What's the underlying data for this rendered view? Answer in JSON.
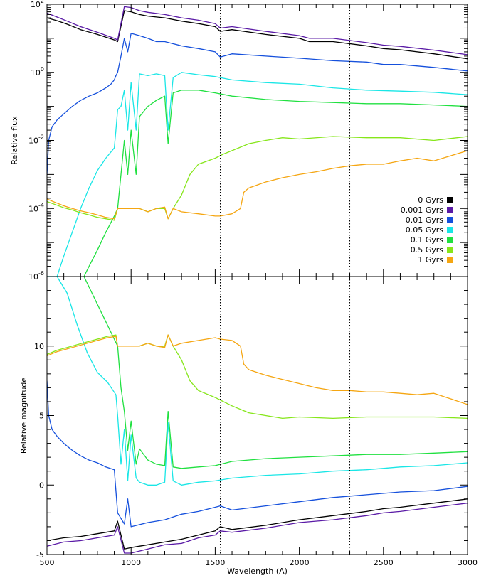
{
  "chart_data": [
    {
      "type": "line",
      "panel": "top",
      "title": "",
      "xlabel": "",
      "ylabel": "Relative flux",
      "yscale": "log",
      "xlim": [
        500,
        3000
      ],
      "ylim": [
        1e-06,
        100
      ],
      "y_tick_labels": [
        {
          "value": 100,
          "base": "10",
          "exp": "2"
        },
        {
          "value": 1,
          "base": "10",
          "exp": "0"
        },
        {
          "value": 0.01,
          "base": "10",
          "exp": "-2"
        },
        {
          "value": 0.0001,
          "base": "10",
          "exp": "-4"
        },
        {
          "value": 1e-06,
          "base": "10",
          "exp": "-6"
        }
      ],
      "reference_lines_x": [
        1530,
        2300
      ],
      "legend": {
        "placement": "right",
        "entries": [
          {
            "label": "0 Gyrs",
            "color": "#000000"
          },
          {
            "label": "0.001 Gyrs",
            "color": "#5a1aa6"
          },
          {
            "label": "0.01 Gyrs",
            "color": "#1550dc"
          },
          {
            "label": "0.05 Gyrs",
            "color": "#19e6e6"
          },
          {
            "label": "0.1 Gyrs",
            "color": "#20e040"
          },
          {
            "label": "0.5 Gyrs",
            "color": "#86e61a"
          },
          {
            "label": "1 Gyrs",
            "color": "#f5a612"
          }
        ]
      },
      "series": [
        {
          "name": "0 Gyrs",
          "color": "#000000",
          "x": [
            500,
            560,
            620,
            700,
            800,
            900,
            920,
            960,
            1000,
            1050,
            1100,
            1200,
            1300,
            1400,
            1500,
            1530,
            1600,
            1800,
            2000,
            2060,
            2200,
            2400,
            2500,
            2600,
            2800,
            3000
          ],
          "y": [
            40,
            33,
            26,
            18,
            13,
            9,
            8,
            65,
            60,
            50,
            45,
            40,
            32,
            27,
            22,
            16,
            18,
            13,
            10,
            8,
            8,
            6,
            5,
            4.6,
            3.5,
            2.5
          ]
        },
        {
          "name": "0.001 Gyrs",
          "color": "#5a1aa6",
          "x": [
            500,
            560,
            620,
            700,
            800,
            900,
            920,
            960,
            1000,
            1050,
            1100,
            1200,
            1300,
            1400,
            1500,
            1530,
            1600,
            1800,
            2000,
            2060,
            2200,
            2400,
            2500,
            2600,
            2800,
            3000
          ],
          "y": [
            55,
            42,
            32,
            22,
            15,
            10,
            9,
            85,
            80,
            65,
            58,
            50,
            40,
            34,
            27,
            20,
            22,
            16,
            12,
            10,
            10,
            7.5,
            6.3,
            5.8,
            4.5,
            3.3
          ]
        },
        {
          "name": "0.01 Gyrs",
          "color": "#1550dc",
          "x": [
            500,
            510,
            530,
            560,
            600,
            650,
            700,
            750,
            800,
            850,
            880,
            900,
            910,
            920,
            940,
            960,
            980,
            1000,
            1050,
            1100,
            1150,
            1200,
            1300,
            1400,
            1500,
            1530,
            1600,
            1800,
            2000,
            2200,
            2400,
            2500,
            2600,
            2800,
            3000
          ],
          "y": [
            0.001,
            0.01,
            0.025,
            0.04,
            0.06,
            0.1,
            0.15,
            0.2,
            0.25,
            0.35,
            0.45,
            0.6,
            0.8,
            1.0,
            3,
            10,
            4,
            14,
            12,
            10,
            8,
            8,
            6,
            5,
            4,
            2.8,
            3.5,
            3,
            2.6,
            2.2,
            2,
            1.7,
            1.7,
            1.4,
            1.1
          ]
        },
        {
          "name": "0.05 Gyrs",
          "color": "#19e6e6",
          "x": [
            500,
            530,
            560,
            600,
            650,
            700,
            750,
            800,
            850,
            900,
            910,
            920,
            940,
            960,
            980,
            1000,
            1030,
            1050,
            1100,
            1150,
            1200,
            1220,
            1250,
            1300,
            1400,
            1500,
            1600,
            1800,
            2000,
            2200,
            2400,
            2600,
            2800,
            3000
          ],
          "y": [
            1e-06,
            1e-06,
            1e-06,
            4e-06,
            2e-05,
            0.0001,
            0.0004,
            0.0013,
            0.003,
            0.006,
            0.02,
            0.08,
            0.1,
            0.3,
            0.02,
            0.5,
            0.02,
            0.9,
            0.8,
            0.9,
            0.8,
            0.02,
            0.7,
            1.0,
            0.85,
            0.75,
            0.6,
            0.5,
            0.45,
            0.35,
            0.3,
            0.28,
            0.26,
            0.22
          ]
        },
        {
          "name": "0.1 Gyrs",
          "color": "#20e040",
          "x": [
            720,
            750,
            800,
            850,
            900,
            920,
            940,
            960,
            980,
            1000,
            1030,
            1050,
            1100,
            1150,
            1200,
            1220,
            1250,
            1300,
            1400,
            1500,
            1600,
            1800,
            2000,
            2200,
            2400,
            2600,
            2800,
            3000
          ],
          "y": [
            1e-06,
            2e-06,
            6e-06,
            2e-05,
            6e-05,
            0.0001,
            0.001,
            0.01,
            0.001,
            0.02,
            0.001,
            0.05,
            0.1,
            0.15,
            0.2,
            0.008,
            0.25,
            0.3,
            0.3,
            0.25,
            0.2,
            0.16,
            0.14,
            0.13,
            0.12,
            0.12,
            0.11,
            0.1
          ]
        },
        {
          "name": "0.5 Gyrs",
          "color": "#86e61a",
          "x": [
            500,
            550,
            600,
            650,
            700,
            750,
            800,
            850,
            900,
            920,
            960,
            1000,
            1050,
            1100,
            1150,
            1200,
            1220,
            1250,
            1300,
            1350,
            1400,
            1500,
            1550,
            1600,
            1700,
            1800,
            1900,
            2000,
            2200,
            2400,
            2600,
            2800,
            3000
          ],
          "y": [
            0.00016,
            0.00013,
            0.000105,
            9e-05,
            7.5e-05,
            6.5e-05,
            5.5e-05,
            5e-05,
            4.5e-05,
            0.0001,
            0.0001,
            0.0001,
            0.0001,
            8e-05,
            0.0001,
            0.0001,
            5e-05,
            0.0001,
            0.00025,
            0.001,
            0.002,
            0.003,
            0.004,
            0.005,
            0.008,
            0.01,
            0.012,
            0.011,
            0.013,
            0.012,
            0.012,
            0.01,
            0.013
          ]
        },
        {
          "name": "1 Gyrs",
          "color": "#f5a612",
          "x": [
            500,
            550,
            600,
            650,
            700,
            750,
            800,
            850,
            900,
            920,
            960,
            1000,
            1050,
            1100,
            1150,
            1200,
            1220,
            1250,
            1300,
            1400,
            1500,
            1530,
            1600,
            1650,
            1670,
            1700,
            1800,
            1900,
            2000,
            2100,
            2200,
            2300,
            2400,
            2500,
            2600,
            2700,
            2800,
            3000
          ],
          "y": [
            0.00019,
            0.00015,
            0.00012,
            0.0001,
            8.5e-05,
            7.5e-05,
            6.5e-05,
            5.5e-05,
            5e-05,
            0.0001,
            0.0001,
            0.0001,
            0.0001,
            8e-05,
            0.0001,
            0.00011,
            5e-05,
            0.0001,
            8e-05,
            7e-05,
            6e-05,
            6e-05,
            7e-05,
            0.0001,
            0.0003,
            0.0004,
            0.0006,
            0.0008,
            0.001,
            0.0012,
            0.0015,
            0.0018,
            0.002,
            0.002,
            0.0025,
            0.003,
            0.0025,
            0.005
          ]
        }
      ]
    },
    {
      "type": "line",
      "panel": "bottom",
      "title": "",
      "xlabel": "Wavelength (A)",
      "ylabel": "Relative magnitude",
      "x_tick_labels": [
        "500",
        "1000",
        "1500",
        "2000",
        "2500",
        "3000"
      ],
      "x_tick_values": [
        500,
        1000,
        1500,
        2000,
        2500,
        3000
      ],
      "y_tick_labels": [
        "-5",
        "0",
        "5",
        "10"
      ],
      "y_tick_values": [
        -5,
        0,
        5,
        10
      ],
      "xlim": [
        500,
        3000
      ],
      "ylim": [
        -5,
        15
      ],
      "reference_lines_x": [
        1530,
        2300
      ],
      "series": [
        {
          "name": "0 Gyrs",
          "color": "#000000",
          "x": [
            500,
            600,
            700,
            800,
            900,
            920,
            960,
            1000,
            1100,
            1200,
            1300,
            1400,
            1500,
            1530,
            1600,
            1800,
            2000,
            2200,
            2400,
            2500,
            2600,
            2800,
            3000
          ],
          "y": [
            -4.0,
            -3.8,
            -3.7,
            -3.5,
            -3.3,
            -2.6,
            -4.6,
            -4.5,
            -4.3,
            -4.1,
            -3.9,
            -3.6,
            -3.3,
            -3.0,
            -3.2,
            -2.9,
            -2.5,
            -2.2,
            -1.9,
            -1.7,
            -1.6,
            -1.3,
            -1.0
          ]
        },
        {
          "name": "0.001 Gyrs",
          "color": "#5a1aa6",
          "x": [
            500,
            600,
            700,
            800,
            900,
            920,
            960,
            1000,
            1100,
            1200,
            1300,
            1400,
            1500,
            1530,
            1600,
            1800,
            2000,
            2200,
            2400,
            2500,
            2600,
            2800,
            3000
          ],
          "y": [
            -4.4,
            -4.1,
            -4.0,
            -3.8,
            -3.6,
            -3.0,
            -4.9,
            -4.9,
            -4.6,
            -4.3,
            -4.2,
            -3.8,
            -3.6,
            -3.3,
            -3.4,
            -3.1,
            -2.7,
            -2.5,
            -2.2,
            -2.0,
            -1.9,
            -1.6,
            -1.3
          ]
        },
        {
          "name": "0.01 Gyrs",
          "color": "#1550dc",
          "x": [
            500,
            510,
            530,
            560,
            600,
            650,
            700,
            750,
            800,
            850,
            900,
            920,
            960,
            980,
            1000,
            1100,
            1200,
            1300,
            1400,
            1500,
            1530,
            1600,
            1800,
            2000,
            2200,
            2400,
            2600,
            2800,
            3000
          ],
          "y": [
            7.5,
            5.0,
            4.0,
            3.5,
            3.0,
            2.5,
            2.1,
            1.8,
            1.6,
            1.3,
            1.1,
            -2.0,
            -2.8,
            -1.0,
            -3.0,
            -2.7,
            -2.5,
            -2.1,
            -1.9,
            -1.6,
            -1.5,
            -1.8,
            -1.5,
            -1.2,
            -0.9,
            -0.7,
            -0.5,
            -0.4,
            -0.1
          ]
        },
        {
          "name": "0.05 Gyrs",
          "color": "#19e6e6",
          "x": [
            500,
            560,
            620,
            680,
            740,
            800,
            860,
            910,
            920,
            940,
            960,
            980,
            1000,
            1030,
            1050,
            1100,
            1150,
            1200,
            1220,
            1250,
            1300,
            1400,
            1500,
            1600,
            1800,
            2000,
            2200,
            2400,
            2600,
            2800,
            3000
          ],
          "y": [
            18,
            16,
            13.8,
            11.5,
            9.5,
            8.1,
            7.4,
            6.5,
            5.0,
            1.5,
            4.0,
            0.3,
            3.6,
            0.5,
            0.2,
            0,
            0,
            0.2,
            4.5,
            0.3,
            0,
            0.2,
            0.3,
            0.5,
            0.7,
            0.8,
            1.0,
            1.1,
            1.3,
            1.4,
            1.6
          ]
        },
        {
          "name": "0.1 Gyrs",
          "color": "#20e040",
          "x": [
            720,
            760,
            800,
            840,
            880,
            920,
            940,
            960,
            980,
            1000,
            1030,
            1050,
            1100,
            1150,
            1200,
            1220,
            1250,
            1300,
            1400,
            1500,
            1600,
            1800,
            2000,
            2200,
            2400,
            2600,
            2800,
            3000
          ],
          "y": [
            15,
            14.0,
            13.0,
            12.0,
            11.0,
            10.0,
            7.0,
            5.3,
            2.5,
            4.6,
            1.5,
            2.6,
            1.8,
            1.5,
            1.4,
            5.3,
            1.3,
            1.2,
            1.3,
            1.4,
            1.7,
            1.9,
            2.0,
            2.1,
            2.2,
            2.2,
            2.3,
            2.4
          ]
        },
        {
          "name": "0.5 Gyrs",
          "color": "#86e61a",
          "x": [
            500,
            560,
            620,
            680,
            740,
            800,
            860,
            910,
            920,
            960,
            1000,
            1050,
            1100,
            1150,
            1200,
            1220,
            1250,
            1300,
            1350,
            1400,
            1500,
            1550,
            1600,
            1700,
            1800,
            1900,
            2000,
            2200,
            2400,
            2600,
            2800,
            3000
          ],
          "y": [
            9.4,
            9.7,
            9.9,
            10.1,
            10.3,
            10.5,
            10.7,
            10.8,
            10.0,
            10.0,
            10.0,
            10.0,
            10.2,
            10.0,
            10.0,
            10.8,
            10.0,
            9.0,
            7.5,
            6.8,
            6.3,
            6.0,
            5.7,
            5.2,
            5.0,
            4.8,
            4.9,
            4.8,
            4.9,
            4.9,
            4.9,
            4.8
          ]
        },
        {
          "name": "1 Gyrs",
          "color": "#f5a612",
          "x": [
            500,
            560,
            620,
            680,
            740,
            800,
            860,
            910,
            920,
            960,
            1000,
            1050,
            1100,
            1150,
            1200,
            1220,
            1250,
            1300,
            1400,
            1500,
            1530,
            1600,
            1650,
            1670,
            1700,
            1800,
            1900,
            2000,
            2100,
            2200,
            2300,
            2400,
            2500,
            2600,
            2700,
            2800,
            2900,
            3000
          ],
          "y": [
            9.3,
            9.6,
            9.8,
            10.0,
            10.2,
            10.4,
            10.6,
            10.7,
            10.0,
            10.0,
            10.0,
            10.0,
            10.2,
            10.0,
            9.9,
            10.8,
            10.0,
            10.2,
            10.4,
            10.6,
            10.5,
            10.4,
            10.0,
            8.7,
            8.3,
            7.9,
            7.6,
            7.3,
            7.0,
            6.8,
            6.8,
            6.7,
            6.7,
            6.6,
            6.5,
            6.6,
            6.2,
            5.8
          ]
        }
      ]
    }
  ]
}
